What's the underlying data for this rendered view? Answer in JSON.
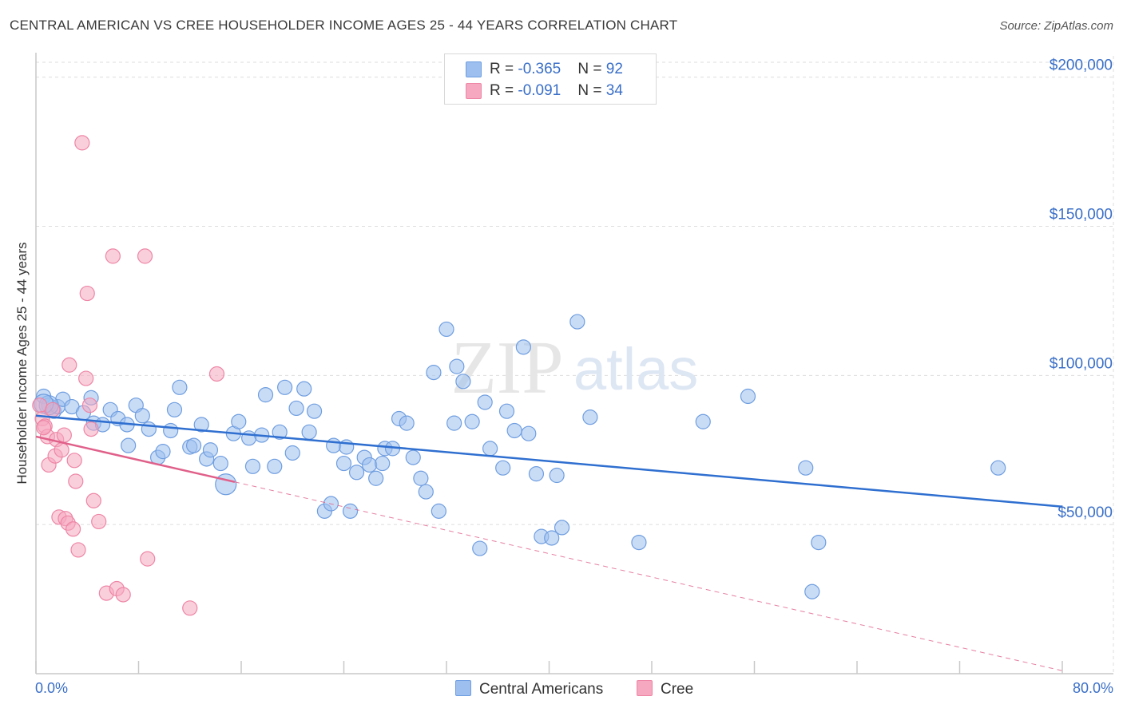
{
  "title": "CENTRAL AMERICAN VS CREE HOUSEHOLDER INCOME AGES 25 - 44 YEARS CORRELATION CHART",
  "source": "Source: ZipAtlas.com",
  "watermark": {
    "zip": "ZIP",
    "atlas": "atlas"
  },
  "legend_top": {
    "rows": [
      {
        "r_label": "R = ",
        "r_value": "-0.365",
        "n_label": "N = ",
        "n_value": "92",
        "color": "#9cbfef"
      },
      {
        "r_label": "R = ",
        "r_value": "-0.091",
        "n_label": "N = ",
        "n_value": "34",
        "color": "#f5a8c0"
      }
    ]
  },
  "legend_bottom": [
    {
      "label": "Central Americans",
      "color": "#9cbfef"
    },
    {
      "label": "Cree",
      "color": "#f5a8c0"
    }
  ],
  "x_axis": {
    "min_label": "0.0%",
    "max_label": "80.0%"
  },
  "chart_data": {
    "type": "scatter",
    "title": "CENTRAL AMERICAN VS CREE HOUSEHOLDER INCOME AGES 25 - 44 YEARS CORRELATION CHART",
    "xlabel": "",
    "ylabel": "Householder Income Ages 25 - 44 years",
    "xlim": [
      0,
      80
    ],
    "ylim": [
      0,
      205000
    ],
    "y_ticks": [
      {
        "value": 50000,
        "label": "$50,000"
      },
      {
        "value": 100000,
        "label": "$100,000"
      },
      {
        "value": 150000,
        "label": "$150,000"
      },
      {
        "value": 200000,
        "label": "$200,000"
      }
    ],
    "x_tick_values": [
      0,
      8,
      16,
      24,
      32,
      40,
      48,
      56,
      64,
      72,
      80
    ],
    "colors": {
      "blue_fill": "#9cbfef",
      "blue_stroke": "#6f9ee0",
      "blue_line": "#2f6fd0",
      "pink_fill": "#f5a8c0",
      "pink_stroke": "#ee86a6",
      "pink_line": "#e0608a",
      "axis_label": "#3a6fc8",
      "grid": "#dddddd"
    },
    "series": [
      {
        "name": "Central Americans",
        "r": -0.365,
        "n": 92,
        "trend": {
          "x0": 0,
          "y0": 86500,
          "x1": 80,
          "y1": 56000
        },
        "points": [
          [
            0.6,
            93000
          ],
          [
            1.0,
            90000
          ],
          [
            1.4,
            88000
          ],
          [
            1.7,
            89500
          ],
          [
            2.1,
            92000
          ],
          [
            2.8,
            89500
          ],
          [
            3.7,
            87500
          ],
          [
            4.3,
            92500
          ],
          [
            4.5,
            84000
          ],
          [
            5.2,
            83500
          ],
          [
            5.8,
            88500
          ],
          [
            6.4,
            85500
          ],
          [
            7.1,
            83500
          ],
          [
            7.2,
            76500
          ],
          [
            7.8,
            90000
          ],
          [
            8.3,
            86500
          ],
          [
            8.8,
            82000
          ],
          [
            9.5,
            72500
          ],
          [
            9.9,
            74500
          ],
          [
            10.5,
            81500
          ],
          [
            10.8,
            88500
          ],
          [
            11.2,
            96000
          ],
          [
            12.0,
            76000
          ],
          [
            12.3,
            76500
          ],
          [
            12.9,
            83500
          ],
          [
            13.3,
            72000
          ],
          [
            13.6,
            75000
          ],
          [
            14.4,
            70500
          ],
          [
            15.4,
            80500
          ],
          [
            15.8,
            84500
          ],
          [
            16.6,
            79000
          ],
          [
            16.9,
            69500
          ],
          [
            17.6,
            80000
          ],
          [
            17.9,
            93500
          ],
          [
            18.6,
            69500
          ],
          [
            19.0,
            81000
          ],
          [
            19.4,
            96000
          ],
          [
            20.0,
            74000
          ],
          [
            20.3,
            89000
          ],
          [
            20.9,
            95500
          ],
          [
            21.3,
            81000
          ],
          [
            21.7,
            88000
          ],
          [
            22.5,
            54500
          ],
          [
            23.0,
            57000
          ],
          [
            23.2,
            76500
          ],
          [
            24.0,
            70500
          ],
          [
            24.2,
            76000
          ],
          [
            24.5,
            54500
          ],
          [
            25.0,
            67500
          ],
          [
            25.6,
            72500
          ],
          [
            26.0,
            70000
          ],
          [
            26.5,
            65500
          ],
          [
            27.0,
            70500
          ],
          [
            27.2,
            75500
          ],
          [
            27.8,
            75500
          ],
          [
            28.3,
            85500
          ],
          [
            28.9,
            84000
          ],
          [
            29.4,
            72500
          ],
          [
            30.0,
            65500
          ],
          [
            30.4,
            61000
          ],
          [
            31.0,
            101000
          ],
          [
            31.4,
            54500
          ],
          [
            32.0,
            115500
          ],
          [
            32.6,
            84000
          ],
          [
            32.8,
            103000
          ],
          [
            33.3,
            98000
          ],
          [
            34.0,
            84500
          ],
          [
            34.6,
            42000
          ],
          [
            35.0,
            91000
          ],
          [
            35.4,
            75500
          ],
          [
            36.4,
            69000
          ],
          [
            36.7,
            88000
          ],
          [
            37.3,
            81500
          ],
          [
            38.0,
            109500
          ],
          [
            38.4,
            80500
          ],
          [
            39.0,
            67000
          ],
          [
            39.4,
            46000
          ],
          [
            40.2,
            45500
          ],
          [
            40.6,
            66500
          ],
          [
            41.0,
            49000
          ],
          [
            42.2,
            118000
          ],
          [
            43.2,
            86000
          ],
          [
            47.0,
            44000
          ],
          [
            52.0,
            84500
          ],
          [
            55.5,
            93000
          ],
          [
            60.0,
            69000
          ],
          [
            61.0,
            44000
          ],
          [
            75.0,
            69000
          ],
          [
            1.0,
            90000
          ],
          [
            0.6,
            90500
          ],
          [
            14.8,
            63500
          ],
          [
            60.5,
            27500
          ]
        ]
      },
      {
        "name": "Cree",
        "r": -0.091,
        "n": 34,
        "trend": {
          "x0": 0,
          "y0": 79500,
          "x1": 80,
          "y1": 1000,
          "solid_until": 15.5
        },
        "points": [
          [
            0.3,
            90000
          ],
          [
            0.5,
            85500
          ],
          [
            0.7,
            83000
          ],
          [
            0.9,
            79500
          ],
          [
            1.0,
            70000
          ],
          [
            1.3,
            88500
          ],
          [
            1.5,
            73000
          ],
          [
            1.6,
            78500
          ],
          [
            1.8,
            52500
          ],
          [
            2.0,
            75000
          ],
          [
            2.2,
            80000
          ],
          [
            2.3,
            52000
          ],
          [
            2.5,
            50500
          ],
          [
            2.6,
            103500
          ],
          [
            2.9,
            48500
          ],
          [
            3.0,
            71500
          ],
          [
            3.1,
            64500
          ],
          [
            3.3,
            41500
          ],
          [
            3.6,
            178000
          ],
          [
            3.9,
            99000
          ],
          [
            4.0,
            127500
          ],
          [
            4.3,
            82000
          ],
          [
            4.5,
            58000
          ],
          [
            4.9,
            51000
          ],
          [
            5.5,
            27000
          ],
          [
            6.0,
            140000
          ],
          [
            6.3,
            28500
          ],
          [
            6.8,
            26500
          ],
          [
            8.5,
            140000
          ],
          [
            8.7,
            38500
          ],
          [
            12.0,
            22000
          ],
          [
            14.1,
            100500
          ],
          [
            0.6,
            82500
          ],
          [
            4.2,
            90000
          ]
        ]
      }
    ]
  }
}
